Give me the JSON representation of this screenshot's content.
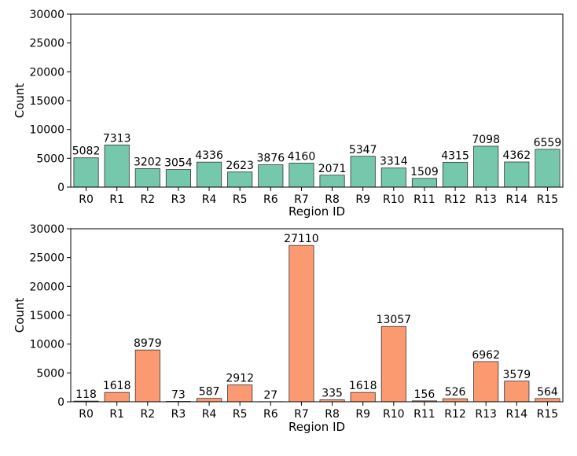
{
  "chart_data": [
    {
      "type": "bar",
      "title": "",
      "xlabel": "Region ID",
      "ylabel": "Count",
      "ylim": [
        0,
        30000
      ],
      "yticks": [
        0,
        5000,
        10000,
        15000,
        20000,
        25000,
        30000
      ],
      "color": "#76c8ad",
      "categories": [
        "R0",
        "R1",
        "R2",
        "R3",
        "R4",
        "R5",
        "R6",
        "R7",
        "R8",
        "R9",
        "R10",
        "R11",
        "R12",
        "R13",
        "R14",
        "R15"
      ],
      "values": [
        5082,
        7313,
        3202,
        3054,
        4336,
        2623,
        3876,
        4160,
        2071,
        5347,
        3314,
        1509,
        4315,
        7098,
        4362,
        6559
      ]
    },
    {
      "type": "bar",
      "title": "",
      "xlabel": "Region ID",
      "ylabel": "Count",
      "ylim": [
        0,
        30000
      ],
      "yticks": [
        0,
        5000,
        10000,
        15000,
        20000,
        25000,
        30000
      ],
      "color": "#fb9a70",
      "categories": [
        "R0",
        "R1",
        "R2",
        "R3",
        "R4",
        "R5",
        "R6",
        "R7",
        "R8",
        "R9",
        "R10",
        "R11",
        "R12",
        "R13",
        "R14",
        "R15"
      ],
      "values": [
        118,
        1618,
        8979,
        73,
        587,
        2912,
        27,
        27110,
        335,
        1618,
        13057,
        156,
        526,
        6962,
        3579,
        564
      ]
    }
  ]
}
